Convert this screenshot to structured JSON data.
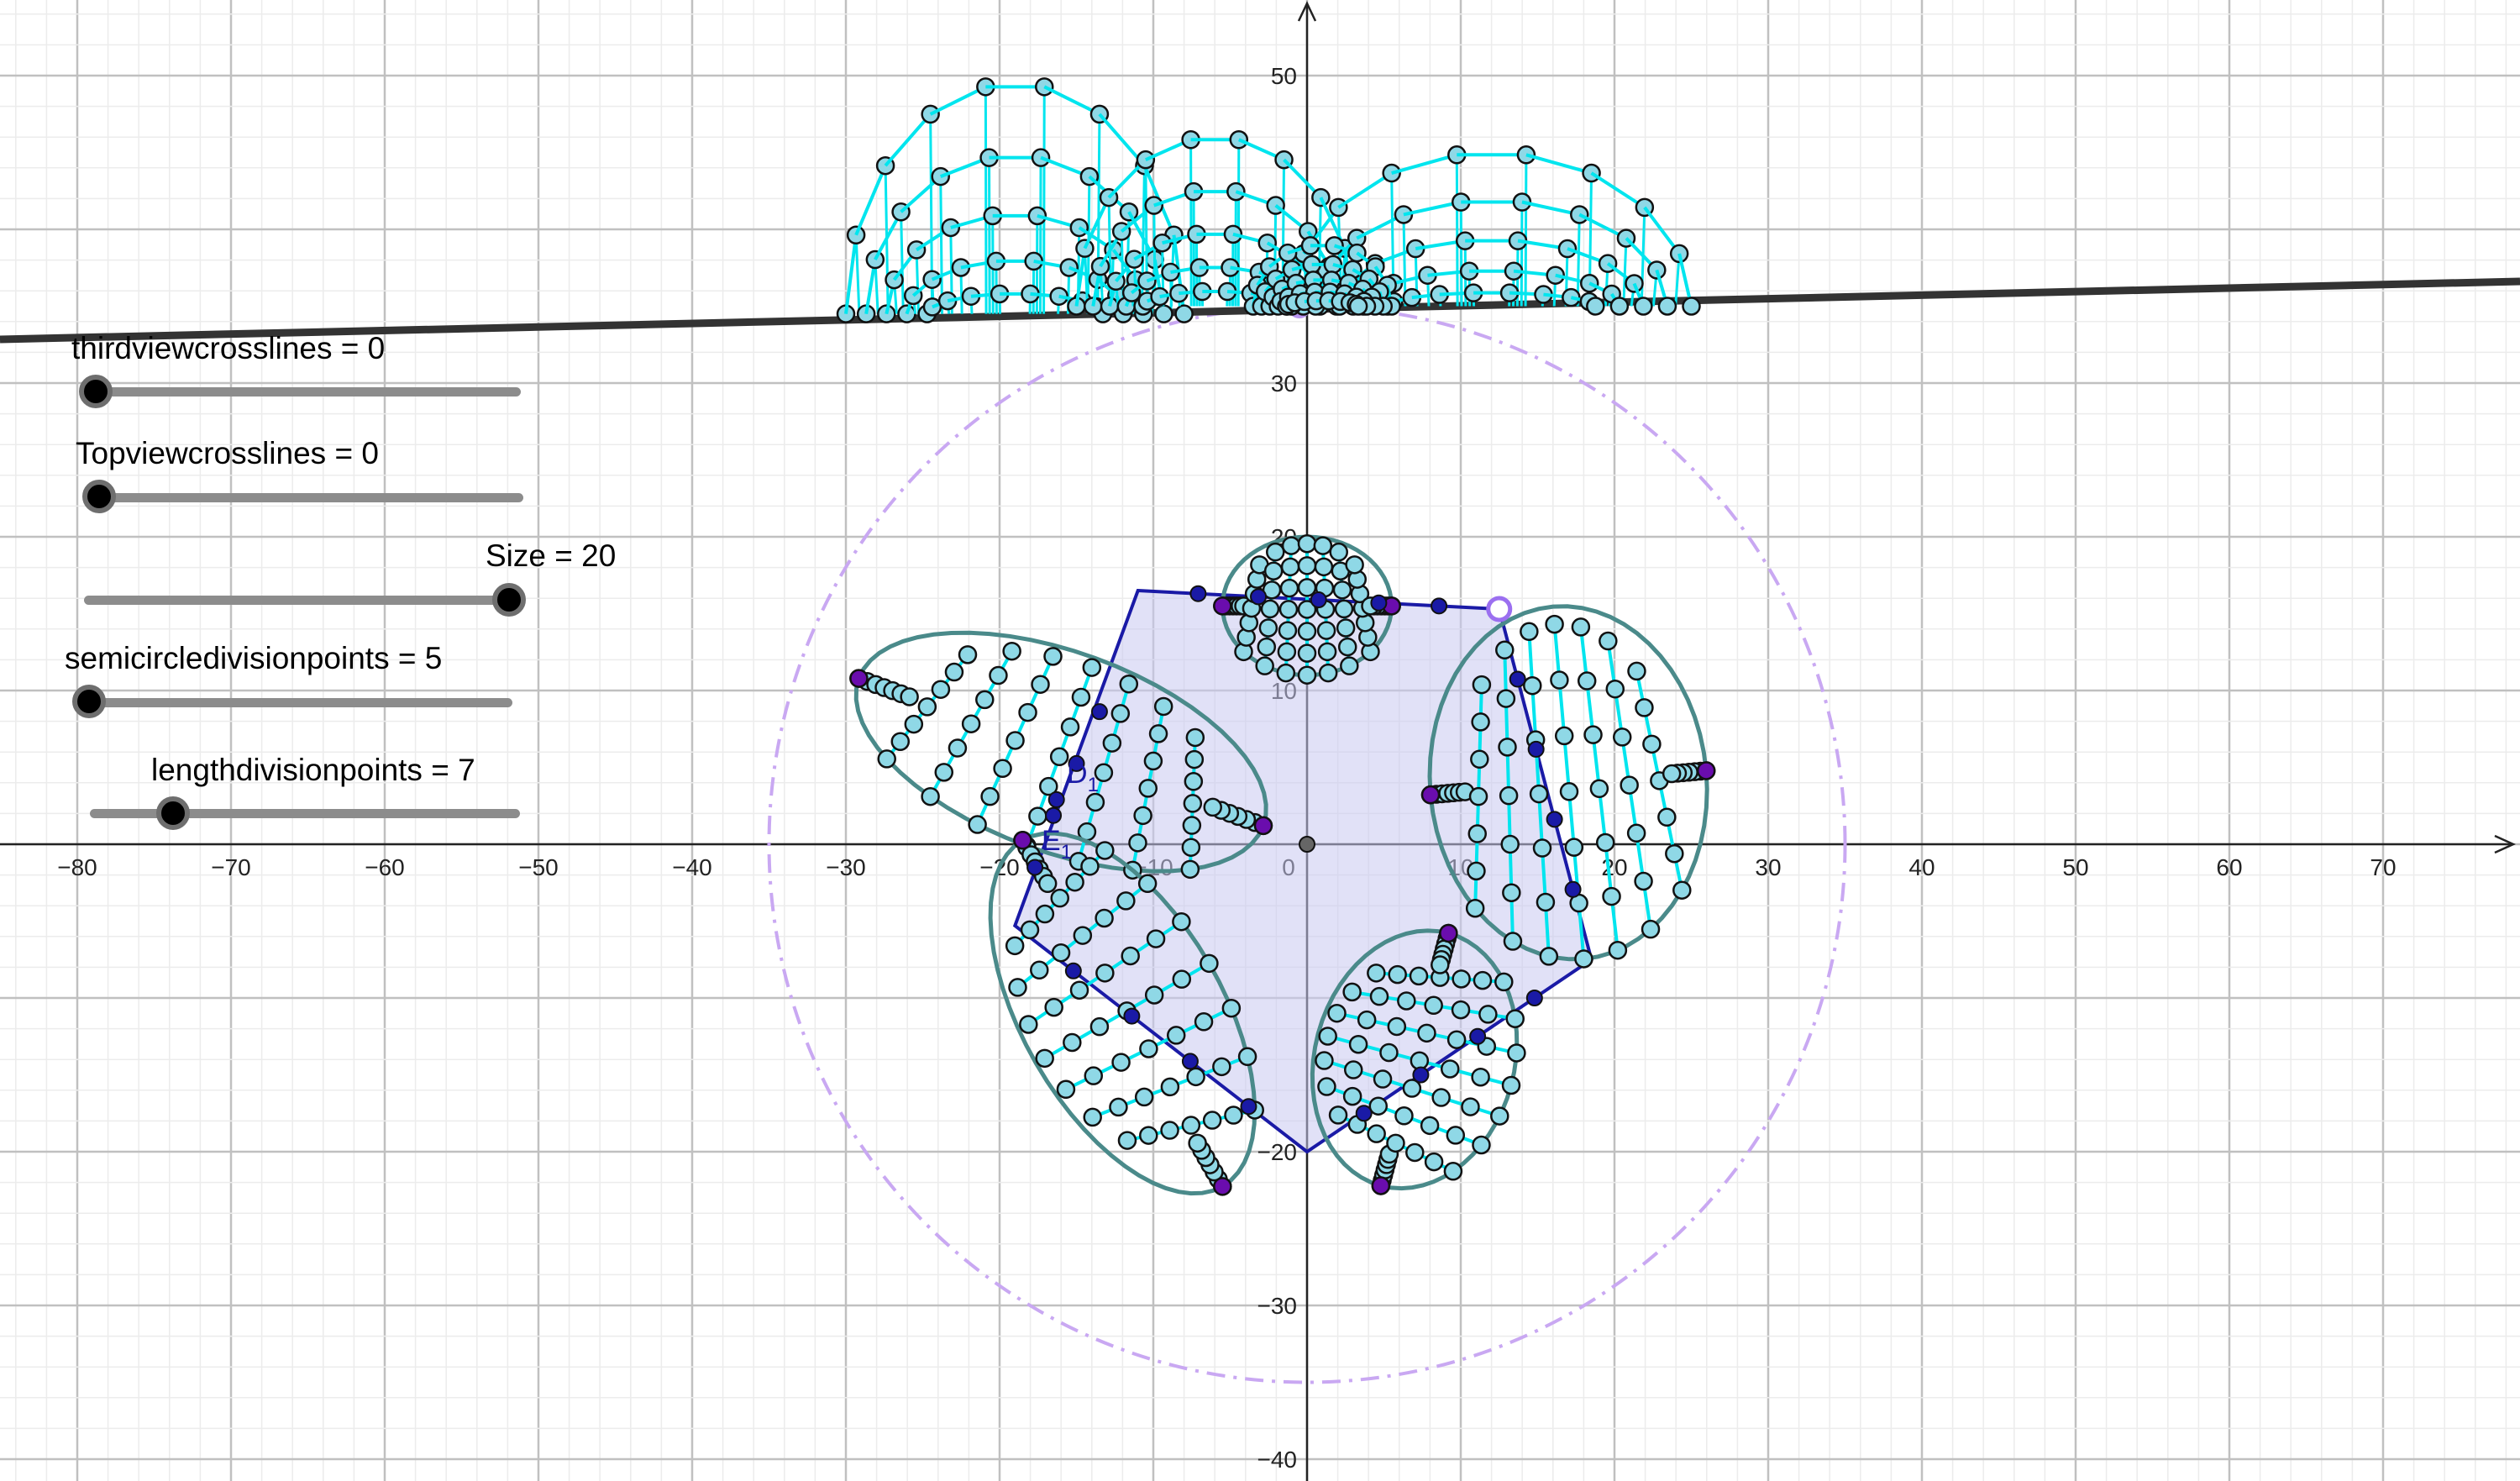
{
  "sliders": [
    {
      "name": "thirdviewcrosslines",
      "label": "thirdviewcrosslines = 0",
      "value": 0
    },
    {
      "name": "Topviewcrosslines",
      "label": "Topviewcrosslines = 0",
      "value": 0
    },
    {
      "name": "Size",
      "label": "Size = 20",
      "value": 20
    },
    {
      "name": "semicircledivisionpoints",
      "label": "semicircledivisionpoints = 5",
      "value": 5
    },
    {
      "name": "lengthdivisionpoints",
      "label": "lengthdivisionpoints = 7",
      "value": 7
    }
  ],
  "axes": {
    "x_ticks": [
      "−80",
      "−70",
      "−60",
      "−50",
      "−40",
      "−30",
      "−20",
      "−10",
      "0",
      "10",
      "20",
      "30",
      "40",
      "50",
      "60",
      "70"
    ],
    "y_ticks": [
      "50",
      "30",
      "20",
      "10",
      "−20",
      "−30",
      "−40"
    ]
  },
  "point_labels": {
    "d1": "D",
    "d1_sub": "1",
    "e1": "E",
    "e1_sub": "1"
  },
  "colors": {
    "cyan": "#00e5ee",
    "blue": "#1a1aa6",
    "purple_point": "#6a0dad",
    "dashed_circle": "#c9a8f2",
    "polygon_fill": "#c8c8f0",
    "point_fill": "#8fd8e6"
  }
}
